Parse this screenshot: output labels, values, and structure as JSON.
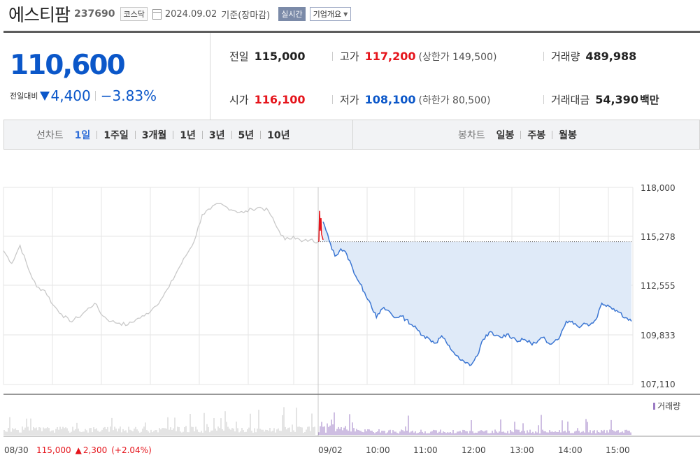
{
  "header": {
    "name": "에스티팜",
    "code": "237690",
    "market": "코스닥",
    "date": "2024.09.02",
    "basis": "기준(장마감)",
    "realtime": "실시간",
    "company_info": "기업개요"
  },
  "summary": {
    "price": "110,600",
    "change_label": "전일대비",
    "change": "4,400",
    "change_rate": "−3.83%",
    "prev_label": "전일",
    "prev": "115,000",
    "high_label": "고가",
    "high": "117,200",
    "upper_label": "상한가",
    "upper": "149,500",
    "volume_label": "거래량",
    "volume": "489,988",
    "open_label": "시가",
    "open": "116,100",
    "low_label": "저가",
    "low": "108,100",
    "lower_label": "하한가",
    "lower": "80,500",
    "amount_label": "거래대금",
    "amount": "54,390",
    "amount_unit": "백만"
  },
  "tabs": {
    "line_title": "선차트",
    "line": [
      "1일",
      "1주일",
      "3개월",
      "1년",
      "3년",
      "5년",
      "10년"
    ],
    "candle_title": "봉차트",
    "candle": [
      "일봉",
      "주봉",
      "월봉"
    ]
  },
  "chart_data": {
    "type": "line",
    "y_ticks": [
      "118,000",
      "115,278",
      "112,555",
      "109,833",
      "107,110"
    ],
    "ylim": [
      107110,
      118000
    ],
    "prev_close": 115000,
    "x_labels": [
      "08/30",
      "09/02",
      "10:00",
      "11:00",
      "12:00",
      "13:00",
      "14:00",
      "15:00"
    ],
    "volume_label": "거래량",
    "prev_day": {
      "date": "08/30",
      "close": "115,000",
      "change": "2,300",
      "change_rate": "(+2.04%)",
      "prices": [
        114500,
        113800,
        114800,
        113500,
        112500,
        112300,
        111500,
        111000,
        110600,
        110800,
        111200,
        111600,
        110900,
        110600,
        110500,
        110400,
        110700,
        110900,
        111300,
        111800,
        112500,
        113400,
        114200,
        115000,
        116500,
        116800,
        117100,
        116900,
        116700,
        116600,
        116800,
        116900,
        116700,
        115800,
        115100,
        115300,
        115000,
        115100,
        115000
      ]
    },
    "today": {
      "prices": [
        116100,
        115100,
        114200,
        114600,
        114300,
        113500,
        112800,
        112200,
        111600,
        110800,
        111300,
        111200,
        110800,
        110900,
        110700,
        110400,
        110100,
        109800,
        109600,
        109400,
        109800,
        109300,
        108900,
        108500,
        108300,
        108200,
        108700,
        109600,
        110000,
        109800,
        109700,
        109900,
        109700,
        109500,
        109600,
        109400,
        109400,
        109700,
        109400,
        109500,
        109800,
        110600,
        110600,
        110300,
        110500,
        110400,
        110700,
        111600,
        111500,
        111300,
        111100,
        110800,
        110600
      ]
    }
  }
}
